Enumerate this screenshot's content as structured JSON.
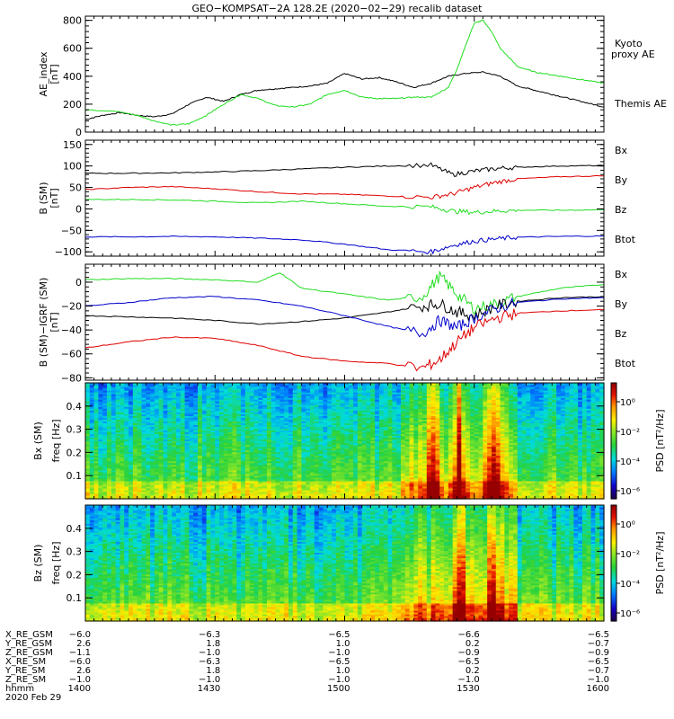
{
  "title": "GEO−KOMPSAT−2A 128.2E (2020−02−29) recalib dataset",
  "colors": {
    "black": "#000000",
    "red": "#e00000",
    "green": "#22dd22",
    "blue": "#0000cc",
    "greenLegend": "#11cc11"
  },
  "chart_data": [
    {
      "id": "ae",
      "type": "line",
      "ylabel": "AE_index\n[nT]",
      "ylim": [
        0,
        830
      ],
      "yticks": [
        0,
        200,
        400,
        600,
        800
      ],
      "x_range_hhmm": [
        "1400",
        "1600"
      ],
      "legend": [
        {
          "name": "Kyoto proxy AE",
          "color": "#22dd22"
        },
        {
          "name": "Themis AE",
          "color": "#000000"
        }
      ],
      "series": [
        {
          "name": "Themis AE",
          "color": "#000000",
          "x": [
            0,
            4,
            8,
            12,
            16,
            20,
            24,
            28,
            32,
            36,
            40,
            44,
            48,
            52,
            56,
            60,
            64,
            68,
            72,
            76,
            80,
            84,
            88,
            92,
            96,
            100,
            104,
            108,
            112,
            116,
            120
          ],
          "y": [
            90,
            120,
            140,
            120,
            110,
            130,
            200,
            250,
            220,
            270,
            300,
            310,
            320,
            330,
            350,
            420,
            380,
            390,
            360,
            320,
            350,
            400,
            420,
            430,
            400,
            330,
            300,
            270,
            240,
            210,
            180
          ]
        },
        {
          "name": "Kyoto proxy AE",
          "color": "#22dd22",
          "x": [
            0,
            4,
            8,
            12,
            16,
            20,
            24,
            28,
            32,
            36,
            40,
            44,
            48,
            52,
            56,
            60,
            64,
            68,
            72,
            76,
            80,
            84,
            86,
            88,
            90,
            92,
            94,
            96,
            100,
            104,
            108,
            112,
            116,
            120
          ],
          "y": [
            160,
            155,
            145,
            120,
            80,
            50,
            60,
            120,
            200,
            270,
            240,
            190,
            180,
            200,
            270,
            300,
            250,
            240,
            240,
            250,
            250,
            320,
            450,
            620,
            780,
            800,
            720,
            600,
            470,
            430,
            410,
            390,
            370,
            350
          ]
        }
      ]
    },
    {
      "id": "bsm",
      "type": "line",
      "ylabel": "B (SM)\n[nT]",
      "ylim": [
        -110,
        160
      ],
      "yticks": [
        -100,
        -50,
        0,
        50,
        100,
        150
      ],
      "legend": [
        {
          "name": "Bx",
          "color": "#0000cc"
        },
        {
          "name": "By",
          "color": "#22dd22"
        },
        {
          "name": "Bz",
          "color": "#e00000"
        },
        {
          "name": "Btot",
          "color": "#000000"
        }
      ],
      "series": [
        {
          "name": "Btot",
          "color": "#000000",
          "x": [
            0,
            10,
            20,
            30,
            40,
            50,
            60,
            70,
            80,
            85,
            90,
            95,
            100,
            110,
            120
          ],
          "y": [
            83,
            83,
            84,
            86,
            89,
            93,
            97,
            100,
            102,
            80,
            88,
            94,
            97,
            100,
            101
          ]
        },
        {
          "name": "Bz",
          "color": "#e00000",
          "x": [
            0,
            10,
            20,
            30,
            40,
            50,
            60,
            70,
            80,
            85,
            90,
            95,
            100,
            110,
            120
          ],
          "y": [
            45,
            50,
            52,
            47,
            40,
            35,
            34,
            30,
            27,
            35,
            50,
            62,
            70,
            75,
            77
          ]
        },
        {
          "name": "By",
          "color": "#22dd22",
          "x": [
            0,
            10,
            20,
            30,
            40,
            50,
            60,
            70,
            80,
            85,
            90,
            95,
            100,
            110,
            120
          ],
          "y": [
            22,
            22,
            21,
            18,
            14,
            18,
            12,
            6,
            5,
            -5,
            -8,
            -5,
            -3,
            -3,
            -2
          ]
        },
        {
          "name": "Bx",
          "color": "#0000cc",
          "x": [
            0,
            10,
            20,
            30,
            40,
            50,
            60,
            70,
            80,
            85,
            90,
            95,
            100,
            110,
            120
          ],
          "y": [
            -65,
            -65,
            -64,
            -65,
            -68,
            -72,
            -82,
            -95,
            -100,
            -85,
            -75,
            -70,
            -66,
            -64,
            -63
          ]
        }
      ]
    },
    {
      "id": "bdiff",
      "type": "line",
      "ylabel": "B (SM)−IGRF (SM)\n[nT]",
      "ylim": [
        -82,
        15
      ],
      "yticks": [
        -80,
        -60,
        -40,
        -20,
        0
      ],
      "legend": [
        {
          "name": "Bx",
          "color": "#0000cc"
        },
        {
          "name": "By",
          "color": "#22dd22"
        },
        {
          "name": "Bz",
          "color": "#e00000"
        },
        {
          "name": "Btot",
          "color": "#000000"
        }
      ],
      "series": [
        {
          "name": "By",
          "color": "#22dd22",
          "x": [
            0,
            10,
            20,
            30,
            40,
            45,
            50,
            60,
            70,
            78,
            82,
            86,
            90,
            95,
            100,
            110,
            120
          ],
          "y": [
            2,
            3,
            3,
            2,
            0,
            8,
            -5,
            -10,
            -15,
            -12,
            5,
            -10,
            -22,
            -18,
            -12,
            -5,
            -2
          ]
        },
        {
          "name": "Btot",
          "color": "#000000",
          "x": [
            0,
            10,
            20,
            30,
            40,
            50,
            60,
            70,
            78,
            82,
            86,
            90,
            95,
            100,
            110,
            120
          ],
          "y": [
            -28,
            -29,
            -30,
            -32,
            -35,
            -33,
            -30,
            -25,
            -20,
            -18,
            -25,
            -28,
            -20,
            -16,
            -13,
            -12
          ]
        },
        {
          "name": "Bx",
          "color": "#0000cc",
          "x": [
            0,
            10,
            20,
            30,
            40,
            50,
            60,
            70,
            78,
            82,
            86,
            90,
            95,
            100,
            110,
            120
          ],
          "y": [
            -20,
            -17,
            -13,
            -12,
            -15,
            -20,
            -28,
            -37,
            -43,
            -32,
            -38,
            -30,
            -22,
            -17,
            -14,
            -13
          ]
        },
        {
          "name": "Bz",
          "color": "#e00000",
          "x": [
            0,
            10,
            20,
            30,
            40,
            50,
            60,
            70,
            78,
            82,
            86,
            90,
            95,
            100,
            110,
            120
          ],
          "y": [
            -55,
            -50,
            -46,
            -47,
            -53,
            -62,
            -66,
            -68,
            -72,
            -65,
            -50,
            -38,
            -30,
            -26,
            -24,
            -23
          ]
        }
      ]
    },
    {
      "id": "bx_spec",
      "type": "heatmap",
      "ylabel_outer": "Bx (SM)",
      "ylabel": "freq [Hz]",
      "ylim": [
        0,
        0.5
      ],
      "yticks": [
        0.1,
        0.2,
        0.3,
        0.4
      ],
      "colorbar": {
        "label": "PSD [nT²/Hz]",
        "ticks": [
          "10⁰",
          "10⁻²",
          "10⁻⁴",
          "10⁻⁶"
        ]
      },
      "hot_minutes": [
        80,
        86,
        94
      ]
    },
    {
      "id": "bz_spec",
      "type": "heatmap",
      "ylabel_outer": "Bz (SM)",
      "ylabel": "freq [Hz]",
      "ylim": [
        0,
        0.5
      ],
      "yticks": [
        0.1,
        0.2,
        0.3,
        0.4
      ],
      "colorbar": {
        "label": "PSD [nT²/Hz]",
        "ticks": [
          "10⁰",
          "10⁻²",
          "10⁻⁴",
          "10⁻⁶"
        ]
      },
      "hot_minutes": [
        86,
        94
      ]
    }
  ],
  "ephemeris": {
    "row_labels": [
      "X_RE_GSM",
      "Y_RE_GSM",
      "Z_RE_GSM",
      "X_RE_SM",
      "Y_RE_SM",
      "Z_RE_SM",
      "hhmm",
      "2020 Feb 29"
    ],
    "columns": [
      [
        "−6.0",
        "2.6",
        "−1.1",
        "−6.0",
        "2.6",
        "−1.0",
        "1400"
      ],
      [
        "−6.3",
        "1.8",
        "−1.0",
        "−6.3",
        "1.8",
        "−1.0",
        "1430"
      ],
      [
        "−6.5",
        "1.0",
        "−1.0",
        "−6.5",
        "1.0",
        "−1.0",
        "1500"
      ],
      [
        "−6.6",
        "0.2",
        "−0.9",
        "−6.5",
        "0.2",
        "−1.0",
        "1530"
      ],
      [
        "−6.5",
        "−0.7",
        "−0.9",
        "−6.5",
        "−0.7",
        "−1.0",
        "1600"
      ]
    ]
  }
}
